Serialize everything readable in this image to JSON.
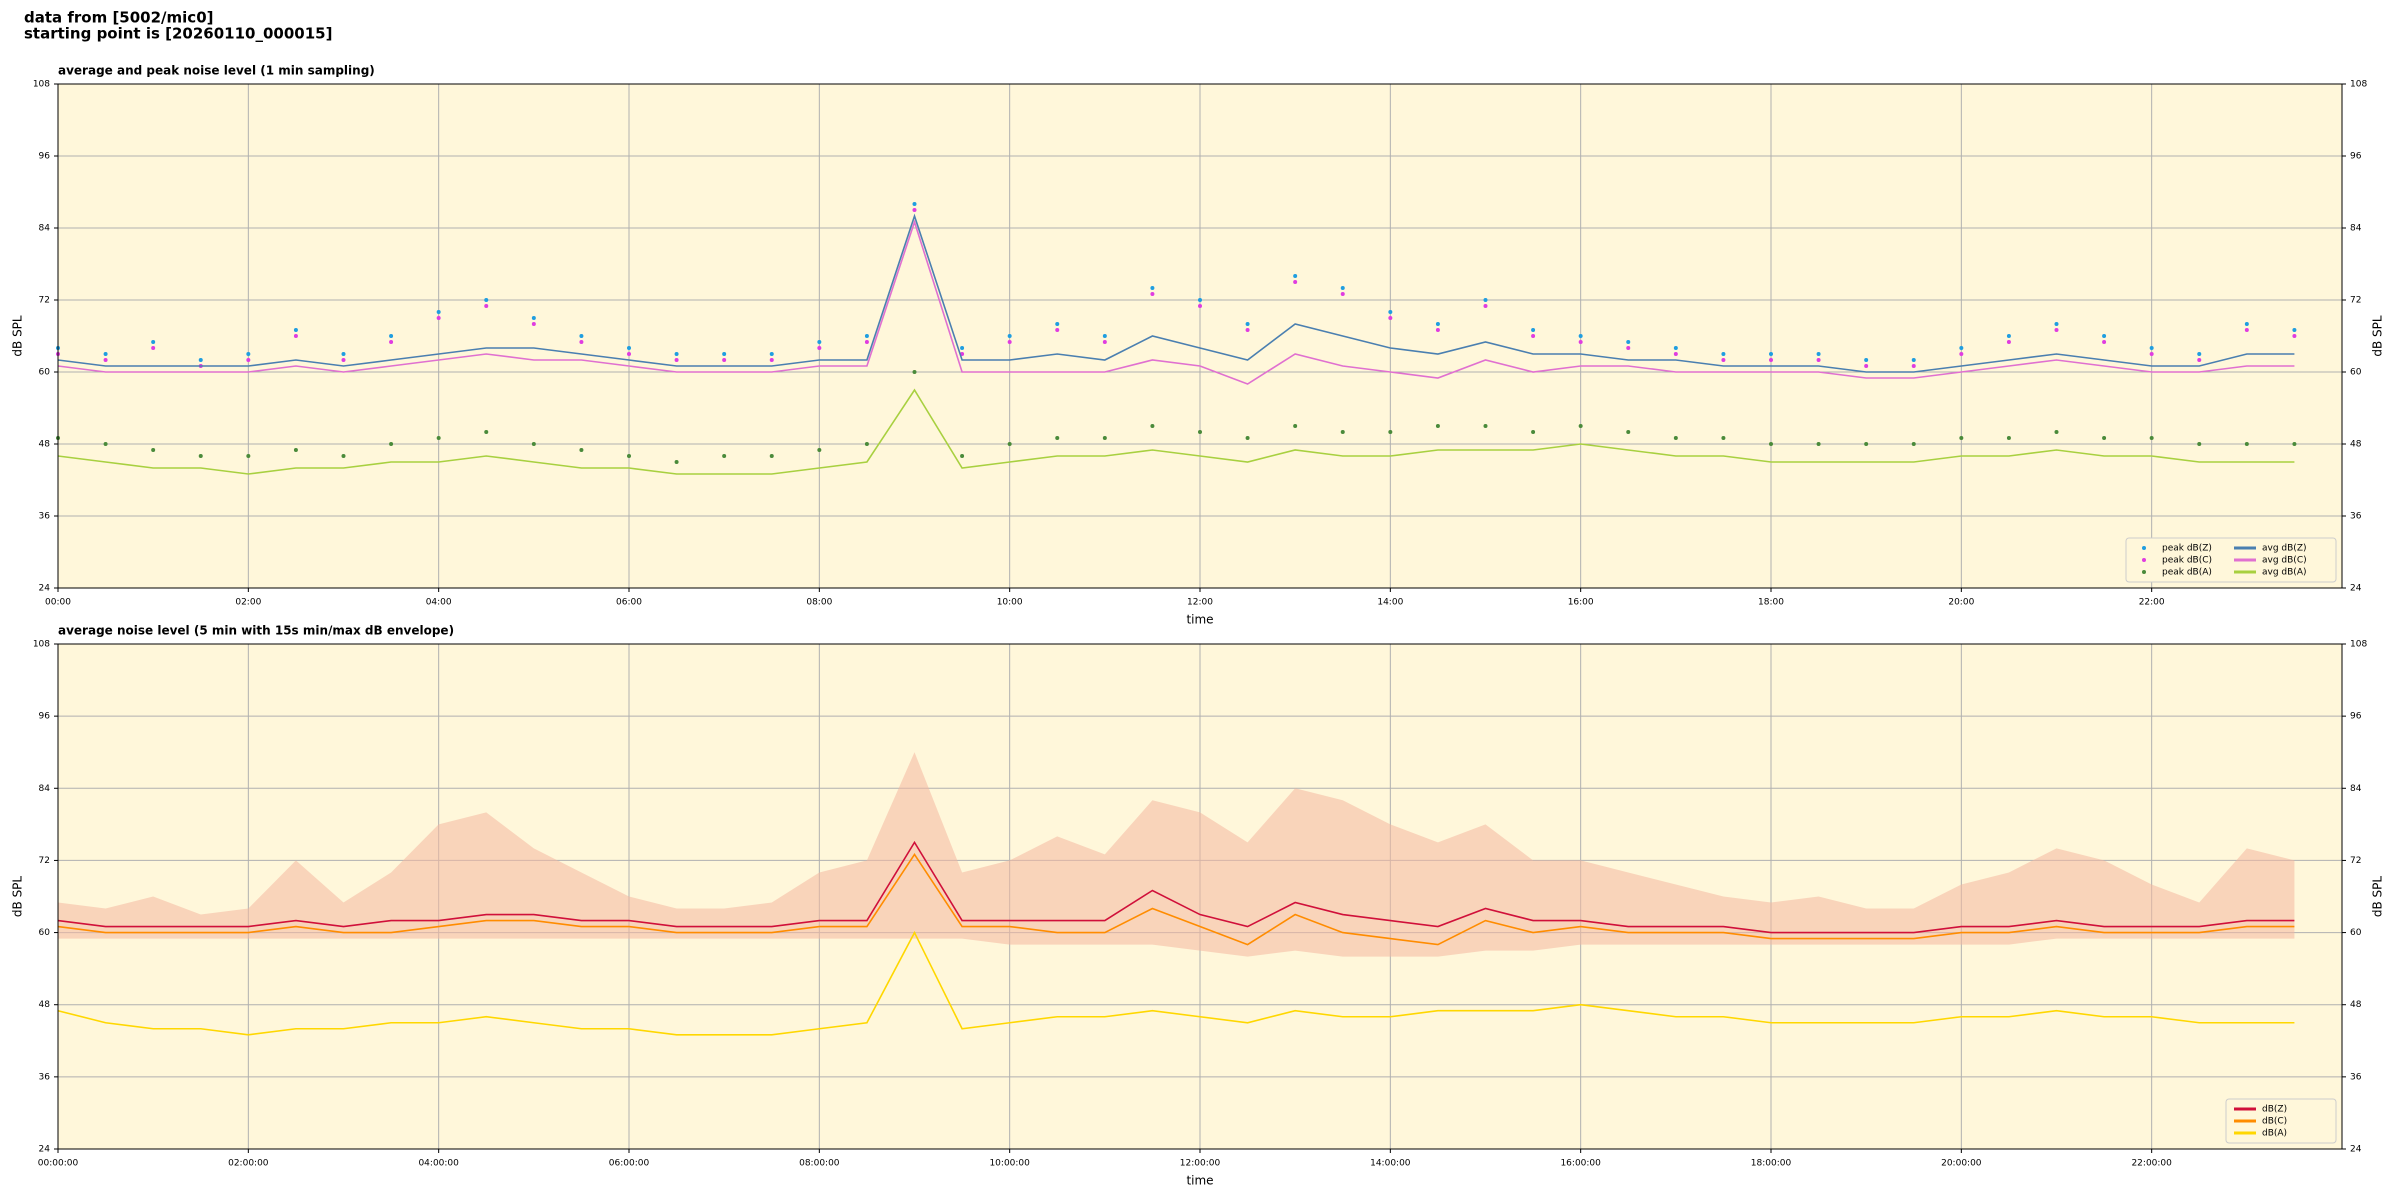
{
  "header": [
    "data from [5002/mic0]",
    "starting point is [20260110_000015]"
  ],
  "chart_data": [
    {
      "type": "line",
      "title": "average and peak noise level (1 min sampling)",
      "xlabel": "time",
      "ylabel": "dB SPL",
      "xlim": [
        0,
        24
      ],
      "ylim": [
        24,
        108
      ],
      "yticks": [
        24,
        36,
        48,
        60,
        72,
        84,
        96,
        108
      ],
      "grid": true,
      "legend": "lower right",
      "legend_columns": 2,
      "xticks": [
        {
          "value": 0,
          "label": "00:00"
        },
        {
          "value": 2,
          "label": "02:00"
        },
        {
          "value": 4,
          "label": "04:00"
        },
        {
          "value": 6,
          "label": "06:00"
        },
        {
          "value": 8,
          "label": "08:00"
        },
        {
          "value": 10,
          "label": "10:00"
        },
        {
          "value": 12,
          "label": "12:00"
        },
        {
          "value": 14,
          "label": "14:00"
        },
        {
          "value": 16,
          "label": "16:00"
        },
        {
          "value": 18,
          "label": "18:00"
        },
        {
          "value": 20,
          "label": "20:00"
        },
        {
          "value": 22,
          "label": "22:00"
        }
      ],
      "x": [
        0,
        0.5,
        1,
        1.5,
        2,
        2.5,
        3,
        3.5,
        4,
        4.5,
        5,
        5.5,
        6,
        6.5,
        7,
        7.5,
        8,
        8.5,
        9,
        9.5,
        10,
        10.5,
        11,
        11.5,
        12,
        12.5,
        13,
        13.5,
        14,
        14.5,
        15,
        15.5,
        16,
        16.5,
        17,
        17.5,
        18,
        18.5,
        19,
        19.5,
        20,
        20.5,
        21,
        21.5,
        22,
        22.5,
        23,
        23.5
      ],
      "series": [
        {
          "name": "peak dB(Z)",
          "type": "scatter",
          "color": "#1f9ee0",
          "values": [
            64,
            63,
            65,
            62,
            63,
            67,
            63,
            66,
            70,
            72,
            69,
            66,
            64,
            63,
            63,
            63,
            65,
            66,
            88,
            64,
            66,
            68,
            66,
            74,
            72,
            68,
            76,
            74,
            70,
            68,
            72,
            67,
            66,
            65,
            64,
            63,
            63,
            63,
            62,
            62,
            64,
            66,
            68,
            66,
            64,
            63,
            68,
            67
          ]
        },
        {
          "name": "peak dB(C)",
          "type": "scatter",
          "color": "#e03ce0",
          "values": [
            63,
            62,
            64,
            61,
            62,
            66,
            62,
            65,
            69,
            71,
            68,
            65,
            63,
            62,
            62,
            62,
            64,
            65,
            87,
            63,
            65,
            67,
            65,
            73,
            71,
            67,
            75,
            73,
            69,
            67,
            71,
            66,
            65,
            64,
            63,
            62,
            62,
            62,
            61,
            61,
            63,
            65,
            67,
            65,
            63,
            62,
            67,
            66
          ]
        },
        {
          "name": "peak dB(A)",
          "type": "scatter",
          "color": "#4a8a3a",
          "values": [
            49,
            48,
            47,
            46,
            46,
            47,
            46,
            48,
            49,
            50,
            48,
            47,
            46,
            45,
            46,
            46,
            47,
            48,
            60,
            46,
            48,
            49,
            49,
            51,
            50,
            49,
            51,
            50,
            50,
            51,
            51,
            50,
            51,
            50,
            49,
            49,
            48,
            48,
            48,
            48,
            49,
            49,
            50,
            49,
            49,
            48,
            48,
            48
          ]
        },
        {
          "name": "avg dB(Z)",
          "color": "#4a7fb0",
          "values": [
            62,
            61,
            61,
            61,
            61,
            62,
            61,
            62,
            63,
            64,
            64,
            63,
            62,
            61,
            61,
            61,
            62,
            62,
            86,
            62,
            62,
            63,
            62,
            66,
            64,
            62,
            68,
            66,
            64,
            63,
            65,
            63,
            63,
            62,
            62,
            61,
            61,
            61,
            60,
            60,
            61,
            62,
            63,
            62,
            61,
            61,
            63,
            63
          ]
        },
        {
          "name": "avg dB(C)",
          "color": "#e070d0",
          "values": [
            61,
            60,
            60,
            60,
            60,
            61,
            60,
            61,
            62,
            63,
            62,
            62,
            61,
            60,
            60,
            60,
            61,
            61,
            85,
            60,
            60,
            60,
            60,
            62,
            61,
            58,
            63,
            61,
            60,
            59,
            62,
            60,
            61,
            61,
            60,
            60,
            60,
            60,
            59,
            59,
            60,
            61,
            62,
            61,
            60,
            60,
            61,
            61
          ]
        },
        {
          "name": "avg dB(A)",
          "color": "#a8d040",
          "values": [
            46,
            45,
            44,
            44,
            43,
            44,
            44,
            45,
            45,
            46,
            45,
            44,
            44,
            43,
            43,
            43,
            44,
            45,
            57,
            44,
            45,
            46,
            46,
            47,
            46,
            45,
            47,
            46,
            46,
            47,
            47,
            47,
            48,
            47,
            46,
            46,
            45,
            45,
            45,
            45,
            46,
            46,
            47,
            46,
            46,
            45,
            45,
            45
          ]
        }
      ]
    },
    {
      "type": "line",
      "title": "average noise level (5 min with 15s min/max dB envelope)",
      "xlabel": "time",
      "ylabel": "dB SPL",
      "xlim": [
        0,
        24
      ],
      "ylim": [
        24,
        108
      ],
      "yticks": [
        24,
        36,
        48,
        60,
        72,
        84,
        96,
        108
      ],
      "grid": true,
      "legend": "lower right",
      "legend_columns": 1,
      "xticks": [
        {
          "value": 0,
          "label": "00:00:00"
        },
        {
          "value": 2,
          "label": "02:00:00"
        },
        {
          "value": 4,
          "label": "04:00:00"
        },
        {
          "value": 6,
          "label": "06:00:00"
        },
        {
          "value": 8,
          "label": "08:00:00"
        },
        {
          "value": 10,
          "label": "10:00:00"
        },
        {
          "value": 12,
          "label": "12:00:00"
        },
        {
          "value": 14,
          "label": "14:00:00"
        },
        {
          "value": 16,
          "label": "16:00:00"
        },
        {
          "value": 18,
          "label": "18:00:00"
        },
        {
          "value": 20,
          "label": "20:00:00"
        },
        {
          "value": 22,
          "label": "22:00:00"
        }
      ],
      "x": [
        0,
        0.5,
        1,
        1.5,
        2,
        2.5,
        3,
        3.5,
        4,
        4.5,
        5,
        5.5,
        6,
        6.5,
        7,
        7.5,
        8,
        8.5,
        9,
        9.5,
        10,
        10.5,
        11,
        11.5,
        12,
        12.5,
        13,
        13.5,
        14,
        14.5,
        15,
        15.5,
        16,
        16.5,
        17,
        17.5,
        18,
        18.5,
        19,
        19.5,
        20,
        20.5,
        21,
        21.5,
        22,
        22.5,
        23,
        23.5
      ],
      "envelope": {
        "color": "#f4b8a0",
        "lower": [
          59,
          59,
          59,
          59,
          59,
          59,
          59,
          59,
          59,
          59,
          59,
          59,
          59,
          59,
          59,
          59,
          59,
          59,
          59,
          59,
          58,
          58,
          58,
          58,
          57,
          56,
          57,
          56,
          56,
          56,
          57,
          57,
          58,
          58,
          58,
          58,
          58,
          58,
          58,
          58,
          58,
          58,
          59,
          59,
          59,
          59,
          59,
          59
        ],
        "upper": [
          65,
          64,
          66,
          63,
          64,
          72,
          65,
          70,
          78,
          80,
          74,
          70,
          66,
          64,
          64,
          65,
          70,
          72,
          90,
          70,
          72,
          76,
          73,
          82,
          80,
          75,
          84,
          82,
          78,
          75,
          78,
          72,
          72,
          70,
          68,
          66,
          65,
          66,
          64,
          64,
          68,
          70,
          74,
          72,
          68,
          65,
          74,
          72
        ]
      },
      "series": [
        {
          "name": "dB(Z)",
          "color": "#d0103a",
          "values": [
            62,
            61,
            61,
            61,
            61,
            62,
            61,
            62,
            62,
            63,
            63,
            62,
            62,
            61,
            61,
            61,
            62,
            62,
            75,
            62,
            62,
            62,
            62,
            67,
            63,
            61,
            65,
            63,
            62,
            61,
            64,
            62,
            62,
            61,
            61,
            61,
            60,
            60,
            60,
            60,
            61,
            61,
            62,
            61,
            61,
            61,
            62,
            62
          ]
        },
        {
          "name": "dB(C)",
          "color": "#ff8c00",
          "values": [
            61,
            60,
            60,
            60,
            60,
            61,
            60,
            60,
            61,
            62,
            62,
            61,
            61,
            60,
            60,
            60,
            61,
            61,
            73,
            61,
            61,
            60,
            60,
            64,
            61,
            58,
            63,
            60,
            59,
            58,
            62,
            60,
            61,
            60,
            60,
            60,
            59,
            59,
            59,
            59,
            60,
            60,
            61,
            60,
            60,
            60,
            61,
            61
          ]
        },
        {
          "name": "dB(A)",
          "color": "#ffd700",
          "values": [
            47,
            45,
            44,
            44,
            43,
            44,
            44,
            45,
            45,
            46,
            45,
            44,
            44,
            43,
            43,
            43,
            44,
            45,
            60,
            44,
            45,
            46,
            46,
            47,
            46,
            45,
            47,
            46,
            46,
            47,
            47,
            47,
            48,
            47,
            46,
            46,
            45,
            45,
            45,
            45,
            46,
            46,
            47,
            46,
            46,
            45,
            45,
            45
          ]
        }
      ]
    }
  ]
}
